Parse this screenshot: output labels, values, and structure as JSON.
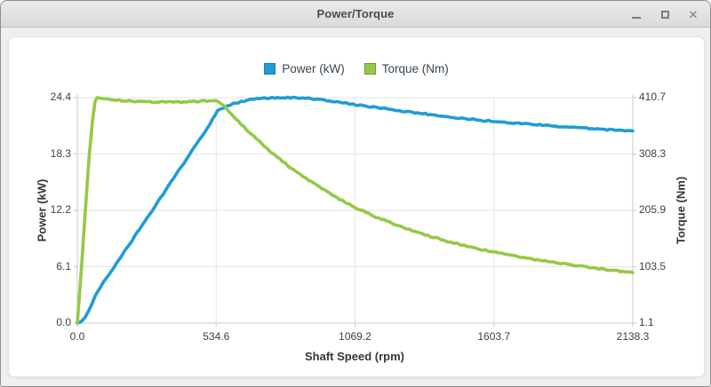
{
  "window": {
    "title": "Power/Torque",
    "controls": {
      "minimize": "minimize",
      "maximize": "maximize",
      "close": "close",
      "close_glyph": "✕"
    }
  },
  "chart_data": {
    "type": "line",
    "title": "Power/Torque",
    "xlabel": "Shaft Speed (rpm)",
    "ylabel_left": "Power (kW)",
    "ylabel_right": "Torque (Nm)",
    "grid": true,
    "legend_position": "top-center",
    "x_range": [
      0,
      2138.3
    ],
    "y_left_range": [
      0,
      24.4
    ],
    "y_right_range": [
      1.1,
      410.7
    ],
    "x_ticks": [
      0.0,
      534.6,
      1069.2,
      1603.7,
      2138.3
    ],
    "y_left_ticks": [
      0.0,
      6.1,
      12.2,
      18.3,
      24.4
    ],
    "y_right_ticks": [
      1.1,
      103.5,
      205.9,
      308.3,
      410.7
    ],
    "series": [
      {
        "name": "Power (kW)",
        "axis": "left",
        "color": "#219bd7",
        "swatch_border": "#1a7cae",
        "points": [
          [
            0,
            0
          ],
          [
            15,
            0.15
          ],
          [
            30,
            0.62
          ],
          [
            45,
            1.4
          ],
          [
            58,
            2.2
          ],
          [
            68,
            2.9
          ],
          [
            76,
            3.3
          ],
          [
            100,
            4.35
          ],
          [
            150,
            6.45
          ],
          [
            200,
            8.5
          ],
          [
            250,
            10.6
          ],
          [
            300,
            12.7
          ],
          [
            350,
            14.8
          ],
          [
            400,
            16.9
          ],
          [
            450,
            19.0
          ],
          [
            500,
            21.1
          ],
          [
            540,
            22.95
          ],
          [
            565,
            23.35
          ],
          [
            600,
            23.75
          ],
          [
            650,
            24.1
          ],
          [
            700,
            24.3
          ],
          [
            760,
            24.4
          ],
          [
            820,
            24.4
          ],
          [
            880,
            24.33
          ],
          [
            950,
            24.15
          ],
          [
            1000,
            23.95
          ],
          [
            1069,
            23.65
          ],
          [
            1150,
            23.35
          ],
          [
            1250,
            22.95
          ],
          [
            1350,
            22.6
          ],
          [
            1450,
            22.25
          ],
          [
            1550,
            21.95
          ],
          [
            1604,
            21.85
          ],
          [
            1700,
            21.6
          ],
          [
            1800,
            21.4
          ],
          [
            1900,
            21.2
          ],
          [
            2000,
            21.0
          ],
          [
            2070,
            20.9
          ],
          [
            2138.3,
            20.8
          ]
        ]
      },
      {
        "name": "Torque (Nm)",
        "axis": "right",
        "color": "#94c947",
        "swatch_border": "#6f9d33",
        "points": [
          [
            0,
            1.1
          ],
          [
            15,
            95
          ],
          [
            30,
            200
          ],
          [
            45,
            302
          ],
          [
            58,
            368
          ],
          [
            68,
            403
          ],
          [
            76,
            410.7
          ],
          [
            95,
            409.5
          ],
          [
            130,
            407.5
          ],
          [
            170,
            405.5
          ],
          [
            220,
            404
          ],
          [
            270,
            403
          ],
          [
            320,
            402.5
          ],
          [
            370,
            402.5
          ],
          [
            420,
            403
          ],
          [
            470,
            404
          ],
          [
            510,
            405
          ],
          [
            540,
            405.5
          ],
          [
            565,
            395
          ],
          [
            600,
            378
          ],
          [
            650,
            353
          ],
          [
            700,
            331
          ],
          [
            760,
            306.5
          ],
          [
            820,
            284
          ],
          [
            880,
            264
          ],
          [
            950,
            243
          ],
          [
            1000,
            228.7
          ],
          [
            1069,
            211.3
          ],
          [
            1150,
            193.9
          ],
          [
            1250,
            175.4
          ],
          [
            1350,
            159.8
          ],
          [
            1450,
            146.6
          ],
          [
            1550,
            135.3
          ],
          [
            1604,
            130.1
          ],
          [
            1700,
            121.3
          ],
          [
            1800,
            113.5
          ],
          [
            1900,
            106.6
          ],
          [
            2000,
            100.3
          ],
          [
            2070,
            96.4
          ],
          [
            2138.3,
            92.9
          ]
        ]
      }
    ],
    "style": {
      "grid_color": "#e4e4e4",
      "axis_color": "#c9c9c9",
      "tick_label_color": "#3f3f3f",
      "line_width": 3.6
    }
  }
}
